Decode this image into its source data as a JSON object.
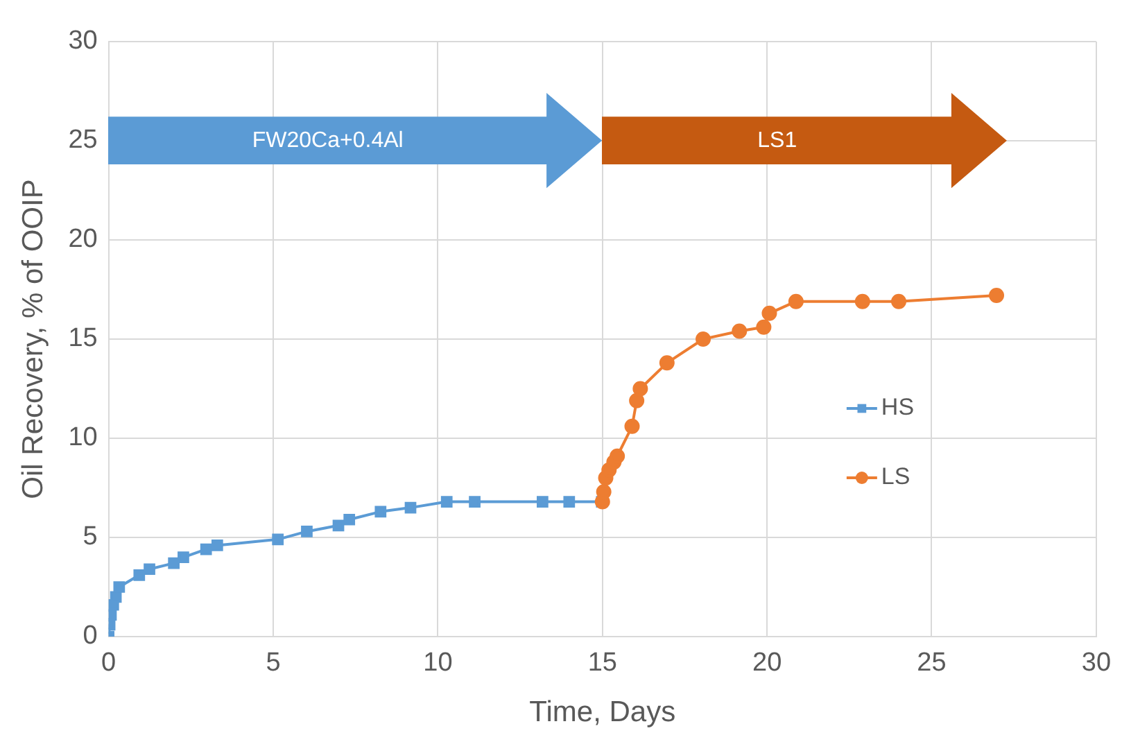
{
  "chart_data": {
    "type": "line",
    "xlabel": "Time, Days",
    "ylabel": "Oil Recovery, % of OOIP",
    "xlim": [
      0,
      30
    ],
    "xticks": [
      0,
      5,
      10,
      15,
      20,
      25,
      30
    ],
    "ylim": [
      0,
      30
    ],
    "yticks": [
      0,
      5,
      10,
      15,
      20,
      25,
      30
    ],
    "grid": true,
    "legend": "right",
    "line_style": "solid",
    "annotations": [
      "FW20Ca+0.4Al",
      "LS1"
    ],
    "series": [
      {
        "name": "HS",
        "color": "#5b9bd5",
        "marker": "square",
        "x": [
          0,
          0.03,
          0.07,
          0.14,
          0.22,
          0.32,
          0.93,
          1.24,
          1.98,
          2.27,
          2.96,
          3.3,
          5.14,
          6.02,
          6.98,
          7.31,
          8.26,
          9.17,
          10.27,
          11.12,
          13.18,
          13.99,
          14.98
        ],
        "values": [
          0,
          0.6,
          1.1,
          1.6,
          2.0,
          2.5,
          3.1,
          3.4,
          3.7,
          4.0,
          4.4,
          4.6,
          4.9,
          5.3,
          5.6,
          5.9,
          6.3,
          6.5,
          6.8,
          6.8,
          6.8,
          6.8,
          6.8
        ]
      },
      {
        "name": "LS",
        "color": "#ed7d31",
        "marker": "circle",
        "x": [
          15,
          15.04,
          15.1,
          15.2,
          15.35,
          15.45,
          15.9,
          16.04,
          16.15,
          16.96,
          18.06,
          19.16,
          19.9,
          20.07,
          20.88,
          22.9,
          24.0,
          26.97
        ],
        "values": [
          6.8,
          7.3,
          8.0,
          8.4,
          8.8,
          9.1,
          10.6,
          11.9,
          12.5,
          13.8,
          15.0,
          15.4,
          15.6,
          16.3,
          16.9,
          16.9,
          16.9,
          17.2
        ]
      }
    ]
  }
}
